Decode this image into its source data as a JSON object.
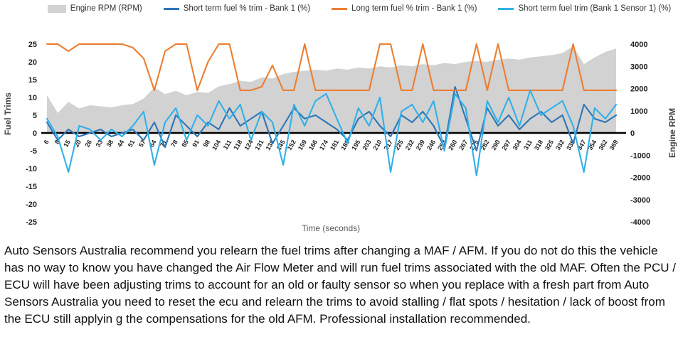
{
  "legend": {
    "note": "legend labels bound from chart_data.series names"
  },
  "caption_text": "Auto Sensors Australia recommend you relearn the fuel trims after changing a MAF / AFM. If you do not do this the vehicle has no way to know you have changed the Air Flow Meter and will run fuel trims associated with the old MAF. Often the PCU / ECU will have been adjusting trims to account for an old or faulty sensor so when you replace with a fresh part from Auto Sensors Australia you need to reset the ecu and relearn the trims to avoid stalling / flat spots / hesitation / lack of boost from the ECU still applyin g the compensations for the old AFM. Professional installation recommended.",
  "chart_data": {
    "type": "line",
    "title": "",
    "xlabel": "Time (seconds)",
    "ylabel": "Fuel Trims",
    "y2label": "Engine RPM",
    "ylim": [
      -25,
      25
    ],
    "y_ticks": [
      25,
      20,
      15,
      10,
      5,
      0,
      -5,
      -10,
      -15,
      -20,
      -25
    ],
    "y2lim": [
      -4000,
      4000
    ],
    "y2_ticks": [
      4000,
      3000,
      2000,
      1000,
      0,
      -1000,
      -2000,
      -3000,
      -4000
    ],
    "grid": false,
    "legend_position": "top",
    "categories": [
      "6",
      "8",
      "15",
      "20",
      "26",
      "33",
      "38",
      "44",
      "51",
      "57",
      "64",
      "71",
      "78",
      "85",
      "91",
      "98",
      "104",
      "111",
      "118",
      "124",
      "131",
      "138",
      "145",
      "152",
      "159",
      "166",
      "174",
      "181",
      "188",
      "195",
      "203",
      "210",
      "217",
      "225",
      "232",
      "239",
      "246",
      "253",
      "260",
      "267",
      "275",
      "282",
      "290",
      "297",
      "304",
      "311",
      "318",
      "325",
      "332",
      "339",
      "347",
      "354",
      "362",
      "369"
    ],
    "series": [
      {
        "name": "Engine RPM (RPM)",
        "type": "area",
        "axis": "right",
        "color": "#d2d2d2",
        "values": [
          1700,
          900,
          1400,
          1100,
          1250,
          1200,
          1150,
          1250,
          1300,
          1550,
          2050,
          1750,
          1900,
          1700,
          1850,
          1800,
          2100,
          2200,
          2350,
          2300,
          2500,
          2450,
          2650,
          2750,
          2800,
          2850,
          2800,
          2900,
          2850,
          2950,
          2900,
          3000,
          2950,
          3050,
          3000,
          3100,
          3050,
          3150,
          3100,
          3200,
          3250,
          3200,
          3300,
          3350,
          3300,
          3400,
          3450,
          3500,
          3600,
          3900,
          3100,
          3400,
          3650,
          3800
        ]
      },
      {
        "name": "Short term fuel % trim - Bank 1 (%)",
        "type": "line",
        "axis": "left",
        "color": "#2e75b6",
        "values": [
          3,
          -2,
          1,
          -1,
          0,
          1,
          -1,
          0,
          1,
          -2,
          3,
          -4,
          5,
          2,
          -1,
          3,
          1,
          7,
          2,
          4,
          6,
          -3,
          2,
          7,
          4,
          5,
          3,
          1,
          -2,
          4,
          6,
          2,
          -1,
          5,
          3,
          6,
          2,
          -4,
          13,
          4,
          -5,
          7,
          2,
          5,
          1,
          4,
          6,
          3,
          5,
          -3,
          8,
          4,
          3,
          5
        ]
      },
      {
        "name": "Long term fuel % trim - Bank 1 (%)",
        "type": "line",
        "axis": "left",
        "color": "#ed7d31",
        "values": [
          25,
          25,
          23,
          25,
          25,
          25,
          25,
          25,
          24,
          21,
          12,
          23,
          25,
          25,
          12,
          20,
          25,
          25,
          12,
          12,
          13,
          19,
          12,
          12,
          25,
          12,
          12,
          12,
          12,
          12,
          12,
          25,
          25,
          12,
          12,
          25,
          12,
          12,
          12,
          12,
          25,
          12,
          25,
          12,
          12,
          12,
          12,
          12,
          12,
          25,
          12,
          12,
          12,
          12
        ]
      },
      {
        "name": "Short term fuel trim (Bank 1 Sensor 1) (%)",
        "type": "line",
        "axis": "left",
        "color": "#31b0e8",
        "values": [
          4,
          -1,
          -11,
          2,
          1,
          -2,
          1,
          -1,
          2,
          6,
          -9,
          3,
          7,
          -2,
          5,
          2,
          9,
          4,
          8,
          -2,
          6,
          3,
          -9,
          8,
          2,
          9,
          11,
          4,
          -3,
          7,
          2,
          10,
          -11,
          6,
          8,
          3,
          9,
          -5,
          11,
          7,
          -12,
          9,
          3,
          10,
          2,
          12,
          5,
          7,
          9,
          2,
          -11,
          7,
          4,
          8
        ]
      }
    ]
  }
}
